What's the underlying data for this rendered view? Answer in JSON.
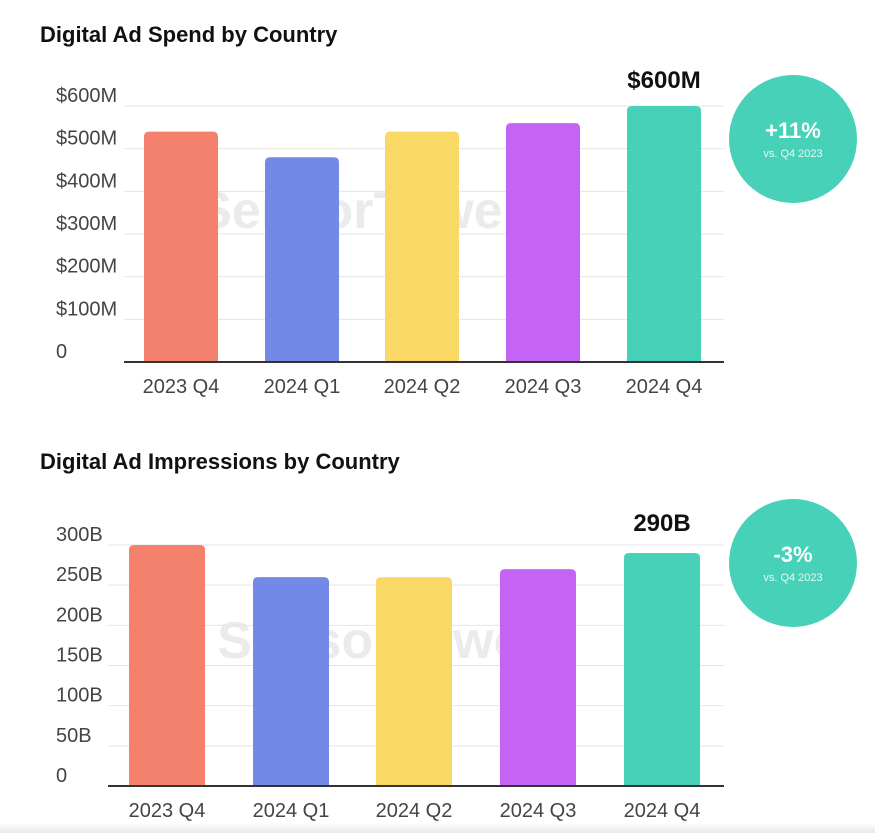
{
  "colors": {
    "bars": [
      "#f4806e",
      "#7389e8",
      "#fad865",
      "#c563f5",
      "#47d1b9"
    ],
    "badge": "#47d1b9",
    "grid": "#e4e4e4",
    "axis": "#333333",
    "tick_text": "#444444",
    "watermark": "#ebebeb"
  },
  "watermark_text": "SensorTower",
  "charts": [
    {
      "title": "Digital Ad Spend by Country",
      "callout": "$600M",
      "badge": {
        "value": "+11%",
        "caption": "vs. Q4 2023"
      }
    },
    {
      "title": "Digital Ad Impressions by Country",
      "callout": "290B",
      "badge": {
        "value": "-3%",
        "caption": "vs. Q4 2023"
      }
    }
  ],
  "chart_data": [
    {
      "type": "bar",
      "title": "Digital Ad Spend by Country",
      "xlabel": "",
      "ylabel": "",
      "categories": [
        "2023 Q4",
        "2024 Q1",
        "2024 Q2",
        "2024 Q3",
        "2024 Q4"
      ],
      "values": [
        540,
        480,
        540,
        560,
        600
      ],
      "unit": "$M",
      "ylim": [
        0,
        600
      ],
      "yticks": [
        0,
        100,
        200,
        300,
        400,
        500,
        600
      ],
      "ytick_labels": [
        "0",
        "$100M",
        "$200M",
        "$300M",
        "$400M",
        "$500M",
        "$600M"
      ],
      "annotations": [
        {
          "category": "2024 Q4",
          "text": "$600M"
        }
      ],
      "grid": true,
      "legend": "none"
    },
    {
      "type": "bar",
      "title": "Digital Ad Impressions by Country",
      "xlabel": "",
      "ylabel": "",
      "categories": [
        "2023 Q4",
        "2024 Q1",
        "2024 Q2",
        "2024 Q3",
        "2024 Q4"
      ],
      "values": [
        300,
        260,
        260,
        270,
        290
      ],
      "unit": "B",
      "ylim": [
        0,
        300
      ],
      "yticks": [
        0,
        50,
        100,
        150,
        200,
        250,
        300
      ],
      "ytick_labels": [
        "0",
        "50B",
        "100B",
        "150B",
        "200B",
        "250B",
        "300B"
      ],
      "annotations": [
        {
          "category": "2024 Q4",
          "text": "290B"
        }
      ],
      "grid": true,
      "legend": "none"
    }
  ]
}
